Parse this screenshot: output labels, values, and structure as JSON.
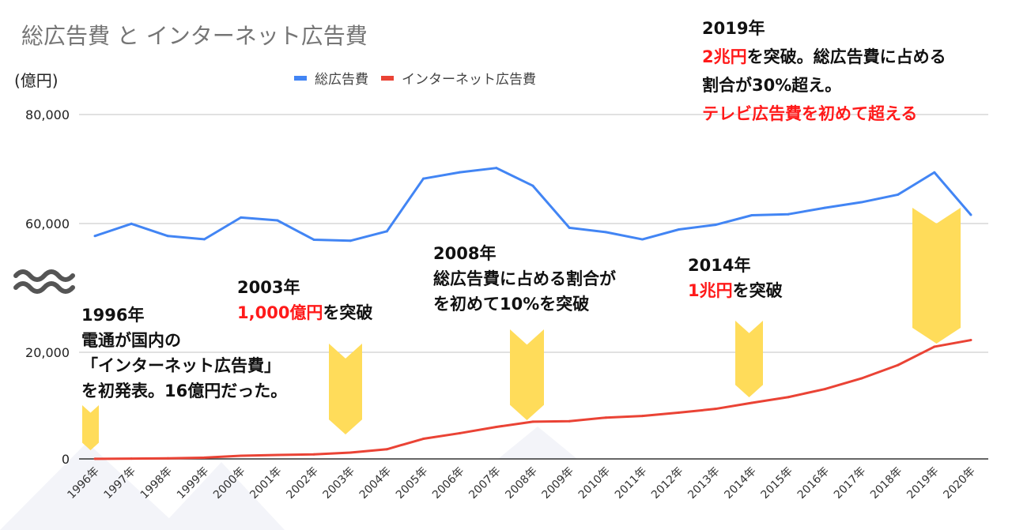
{
  "chart_data": {
    "type": "line",
    "title": "総広告費 と インターネット広告費",
    "ylabel": "(億円)",
    "xlabel": "",
    "y_axis_break": [
      20000,
      60000
    ],
    "yticks": [
      "0",
      "20,000",
      "60,000",
      "80,000"
    ],
    "grid": true,
    "legend": "top",
    "categories": [
      "1996年",
      "1997年",
      "1998年",
      "1999年",
      "2000年",
      "2001年",
      "2002年",
      "2003年",
      "2004年",
      "2005年",
      "2006年",
      "2007年",
      "2008年",
      "2009年",
      "2010年",
      "2011年",
      "2012年",
      "2013年",
      "2014年",
      "2015年",
      "2016年",
      "2017年",
      "2018年",
      "2019年",
      "2020年"
    ],
    "series": [
      {
        "name": "総広告費",
        "color": "#4285f4",
        "values": [
          57715,
          59961,
          57711,
          57117,
          61102,
          60580,
          57032,
          56841,
          58571,
          68235,
          69399,
          70191,
          66926,
          59222,
          58427,
          57096,
          58913,
          59762,
          61522,
          61710,
          62880,
          63907,
          65300,
          69381,
          61594
        ]
      },
      {
        "name": "インターネット広告費",
        "color": "#ea4335",
        "values": [
          16,
          60,
          114,
          241,
          590,
          735,
          845,
          1183,
          1814,
          3777,
          4826,
          6003,
          6983,
          7069,
          7747,
          8062,
          8680,
          9381,
          10519,
          11594,
          13100,
          15094,
          17589,
          21048,
          22290
        ]
      }
    ],
    "annotations": [
      {
        "year": "1996年",
        "lines": [
          [
            "1996年"
          ],
          [
            "電通が国内の"
          ],
          [
            "「インターネット広告費」"
          ],
          [
            "を初発表。16億円だった。"
          ]
        ]
      },
      {
        "year": "2003年",
        "lines": [
          [
            "2003年"
          ],
          [
            "1,000億円",
            "を突破"
          ]
        ]
      },
      {
        "year": "2008年",
        "lines": [
          [
            "2008年"
          ],
          [
            "総広告費に占める割合が"
          ],
          [
            "を初めて10%を突破"
          ]
        ]
      },
      {
        "year": "2014年",
        "lines": [
          [
            "2014年"
          ],
          [
            "1兆円",
            "を突破"
          ]
        ]
      },
      {
        "year": "2019年",
        "lines": [
          [
            "2019年"
          ],
          [
            "2兆円",
            "を突破。総広告費に占める"
          ],
          [
            "割合が30%超え。"
          ],
          [
            "テレビ広告費を初めて超える"
          ]
        ]
      }
    ],
    "highlight_color": "#ff1a1a",
    "arrow_color": "#ffdc5a"
  }
}
